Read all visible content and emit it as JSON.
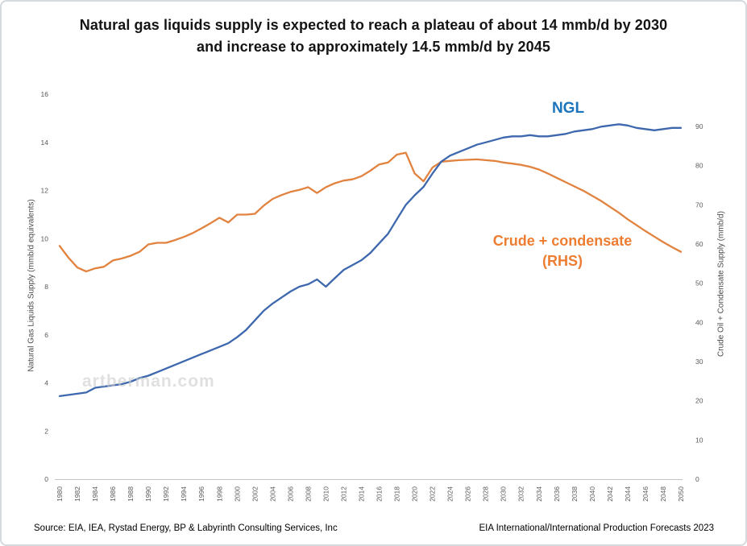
{
  "title": {
    "line1": "Natural gas liquids supply is expected to reach a plateau of about 14 mmb/d by 2030",
    "line2": "and increase to approximately 14.5 mmb/d by 2045"
  },
  "watermark": "artberman.com",
  "annotations": {
    "ngl_label": "NGL",
    "crude_label_line1": "Crude + condensate",
    "crude_label_line2": "(RHS)"
  },
  "footer": {
    "source": "Source: EIA, IEA, Rystad Energy, BP &  Labyrinth Consulting Services, Inc",
    "credit": "EIA International/International Production Forecasts 2023"
  },
  "colors": {
    "ngl_line": "#3d68ae",
    "ngl_label": "#1b75bc",
    "crude_line": "#e2823f",
    "crude_label": "#ed7d31",
    "axis_text": "#595959",
    "axis_line": "#c3c3c3",
    "watermark": "#cccccc",
    "title_text": "#141414"
  },
  "chart_data": {
    "type": "line",
    "grid": false,
    "legend_position": "inline-annotations",
    "x": [
      1980,
      1981,
      1982,
      1983,
      1984,
      1985,
      1986,
      1987,
      1988,
      1989,
      1990,
      1991,
      1992,
      1993,
      1994,
      1995,
      1996,
      1997,
      1998,
      1999,
      2000,
      2001,
      2002,
      2003,
      2004,
      2005,
      2006,
      2007,
      2008,
      2009,
      2010,
      2011,
      2012,
      2013,
      2014,
      2015,
      2016,
      2017,
      2018,
      2019,
      2020,
      2021,
      2022,
      2023,
      2024,
      2025,
      2026,
      2027,
      2028,
      2029,
      2030,
      2031,
      2032,
      2033,
      2034,
      2035,
      2036,
      2037,
      2038,
      2039,
      2040,
      2041,
      2042,
      2043,
      2044,
      2045,
      2046,
      2047,
      2048,
      2049,
      2050
    ],
    "series": [
      {
        "name": "NGL",
        "axis": "left",
        "values": [
          3.45,
          3.5,
          3.55,
          3.6,
          3.8,
          3.85,
          3.9,
          3.95,
          4.05,
          4.2,
          4.3,
          4.45,
          4.6,
          4.75,
          4.9,
          5.05,
          5.2,
          5.35,
          5.5,
          5.65,
          5.9,
          6.2,
          6.6,
          7.0,
          7.3,
          7.55,
          7.8,
          8.0,
          8.1,
          8.3,
          8.0,
          8.35,
          8.7,
          8.9,
          9.1,
          9.4,
          9.8,
          10.2,
          10.8,
          11.4,
          11.8,
          12.15,
          12.7,
          13.2,
          13.45,
          13.6,
          13.75,
          13.9,
          14.0,
          14.1,
          14.2,
          14.25,
          14.25,
          14.3,
          14.25,
          14.25,
          14.3,
          14.35,
          14.45,
          14.5,
          14.55,
          14.65,
          14.7,
          14.75,
          14.7,
          14.6,
          14.55,
          14.5,
          14.55,
          14.6,
          14.6
        ]
      },
      {
        "name": "Crude + condensate (RHS)",
        "axis": "right",
        "values": [
          59.5,
          56.5,
          54.0,
          53.0,
          53.8,
          54.2,
          55.8,
          56.3,
          57.0,
          58.0,
          59.9,
          60.3,
          60.3,
          61.0,
          61.8,
          62.8,
          64.0,
          65.3,
          66.7,
          65.5,
          67.5,
          67.5,
          67.7,
          69.8,
          71.5,
          72.5,
          73.3,
          73.8,
          74.5,
          73.0,
          74.5,
          75.5,
          76.2,
          76.5,
          77.3,
          78.7,
          80.3,
          80.8,
          82.8,
          83.3,
          78.0,
          76.0,
          79.5,
          81.0,
          81.2,
          81.4,
          81.5,
          81.6,
          81.4,
          81.2,
          80.8,
          80.5,
          80.2,
          79.7,
          79.0,
          78.0,
          76.9,
          75.8,
          74.7,
          73.6,
          72.3,
          71.0,
          69.5,
          68.0,
          66.3,
          64.8,
          63.3,
          61.9,
          60.5,
          59.2,
          58.0
        ]
      }
    ],
    "left_axis": {
      "label": "Natural Gas Liquids Supply (mmb/d equivalents)",
      "range": [
        0,
        16
      ],
      "ticks": [
        0,
        2,
        4,
        6,
        8,
        10,
        12,
        14,
        16
      ]
    },
    "right_axis": {
      "label": "Crude Oil + Condensate Supply (mmb/d)",
      "range": [
        0,
        90
      ],
      "ticks": [
        0,
        10,
        20,
        30,
        40,
        50,
        60,
        70,
        80,
        90
      ]
    },
    "x_axis": {
      "range": [
        1980,
        2050
      ],
      "tick_years": [
        1980,
        1982,
        1984,
        1986,
        1988,
        1990,
        1992,
        1994,
        1996,
        1998,
        2000,
        2002,
        2004,
        2006,
        2008,
        2010,
        2012,
        2014,
        2016,
        2018,
        2020,
        2022,
        2024,
        2026,
        2028,
        2030,
        2032,
        2034,
        2036,
        2038,
        2040,
        2042,
        2044,
        2046,
        2048,
        2050
      ]
    }
  }
}
